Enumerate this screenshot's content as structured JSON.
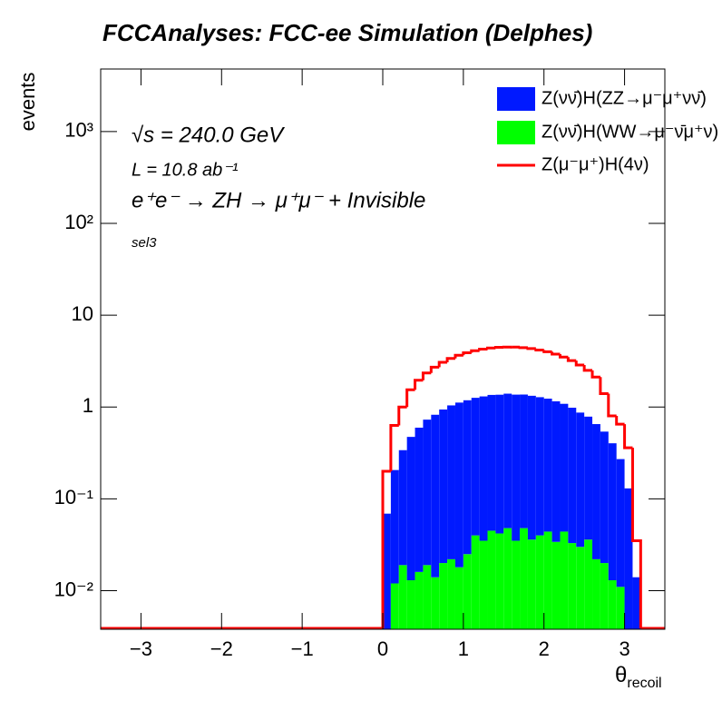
{
  "chart_data": {
    "type": "stacked_histogram",
    "title": "FCCAnalyses: FCC-ee Simulation (Delphes)",
    "annotations": [
      "√s = 240.0 GeV",
      "L = 10.8 ab⁻¹",
      "e⁺e⁻ → ZH → μ⁺μ⁻ + Invisible",
      "sel3"
    ],
    "y_label": "events",
    "x_label": {
      "symbol": "θ",
      "subscript": "recoil"
    },
    "log_y": true,
    "xlim": [
      -3.5,
      3.5
    ],
    "ylim": [
      0.0038,
      4800
    ],
    "xticks": [
      {
        "value": -3,
        "label": "−3"
      },
      {
        "value": -2,
        "label": "−2"
      },
      {
        "value": -1,
        "label": "−1"
      },
      0,
      1,
      2,
      3
    ],
    "yticks": [
      {
        "value": 0.01,
        "label": "10⁻²"
      },
      {
        "value": 0.1,
        "label": "10⁻¹"
      },
      1,
      10,
      {
        "value": 100,
        "label": "10²"
      },
      {
        "value": 1000,
        "label": "10³"
      }
    ],
    "bins": [
      0,
      0.1,
      0.2,
      0.3,
      0.4,
      0.5,
      0.6,
      0.7,
      0.8,
      0.9,
      1.0,
      1.1,
      1.2,
      1.3,
      1.4,
      1.5,
      1.6,
      1.7,
      1.8,
      1.9,
      2.0,
      2.1,
      2.2,
      2.3,
      2.4,
      2.5,
      2.6,
      2.7,
      2.8,
      2.9,
      3.0,
      3.1,
      3.2
    ],
    "series": [
      {
        "name": "Z(νν̄)H(ZZ→μ⁻μ⁺νν̄)",
        "color": "#0019ff",
        "stacked": true,
        "values": [
          0.069,
          0.194,
          0.32,
          0.46,
          0.58,
          0.71,
          0.81,
          0.92,
          1.02,
          1.1,
          1.16,
          1.22,
          1.27,
          1.31,
          1.32,
          1.35,
          1.33,
          1.32,
          1.29,
          1.24,
          1.19,
          1.12,
          1.04,
          0.95,
          0.84,
          0.75,
          0.63,
          0.52,
          0.39,
          0.26,
          0.13,
          0.014
        ]
      },
      {
        "name": "Z(νν̄)H(WW→μ⁻ν̄μ⁺ν)",
        "color": "#00ff00",
        "stacked": true,
        "values": [
          0,
          0.012,
          0.019,
          0.013,
          0.016,
          0.019,
          0.014,
          0.02,
          0.022,
          0.018,
          0.025,
          0.04,
          0.035,
          0.045,
          0.042,
          0.048,
          0.035,
          0.048,
          0.036,
          0.04,
          0.044,
          0.034,
          0.044,
          0.033,
          0.03,
          0.036,
          0.022,
          0.02,
          0.013,
          0.011,
          0,
          0
        ]
      },
      {
        "name": "Z(μ⁻μ⁺)H(4ν)",
        "color": "#ff0000",
        "stacked": false,
        "values": [
          0.2,
          0.63,
          1.0,
          1.54,
          1.96,
          2.35,
          2.72,
          3.07,
          3.38,
          3.66,
          3.9,
          4.1,
          4.27,
          4.39,
          4.47,
          4.5,
          4.49,
          4.43,
          4.33,
          4.18,
          4.0,
          3.77,
          3.5,
          3.2,
          2.87,
          2.51,
          2.12,
          1.4,
          0.8,
          0.65,
          0.36,
          0.035
        ]
      }
    ]
  }
}
